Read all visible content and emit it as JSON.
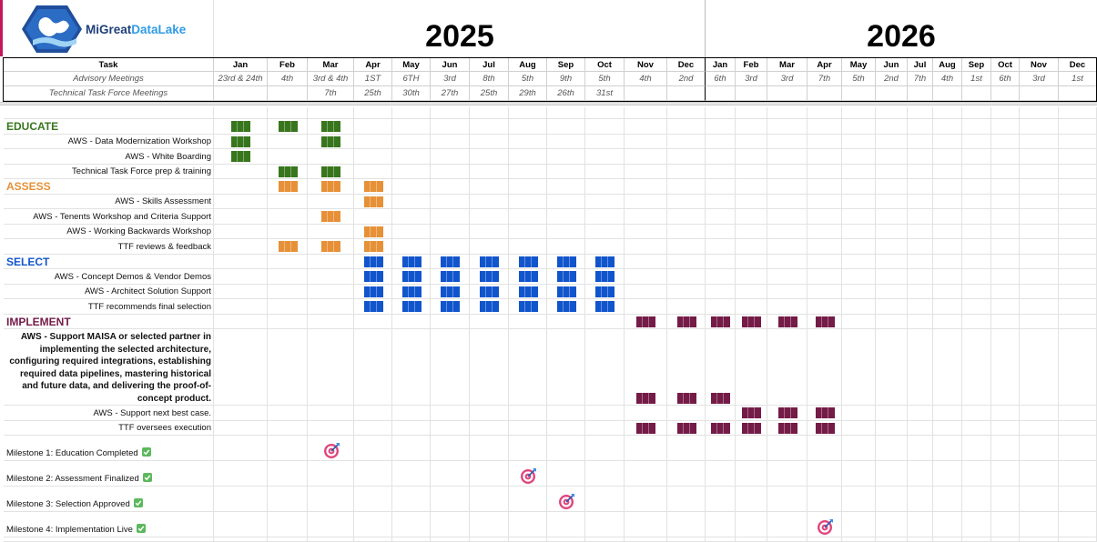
{
  "logo": {
    "brand_a": "MiGreat",
    "brand_b": "DataLake"
  },
  "years": [
    "2025",
    "2026"
  ],
  "header": {
    "task": "Task",
    "advisory": "Advisory Meetings",
    "ttf": "Technical Task Force Meetings"
  },
  "months": [
    "Jan",
    "Feb",
    "Mar",
    "Apr",
    "May",
    "Jun",
    "Jul",
    "Aug",
    "Sep",
    "Oct",
    "Nov",
    "Dec",
    "Jan",
    "Feb",
    "Mar",
    "Apr",
    "May",
    "Jun",
    "Jul",
    "Aug",
    "Sep",
    "Oct",
    "Nov",
    "Dec"
  ],
  "advisory_dates": [
    "23rd & 24th",
    "4th",
    "3rd & 4th",
    "1ST",
    "6TH",
    "3rd",
    "8th",
    "5th",
    "9th",
    "5th",
    "4th",
    "2nd",
    "6th",
    "3rd",
    "3rd",
    "7th",
    "5th",
    "2nd",
    "7th",
    "4th",
    "1st",
    "6th",
    "3rd",
    "1st"
  ],
  "ttf_dates": [
    null,
    null,
    "7th",
    "25th",
    "30th",
    "27th",
    "25th",
    "29th",
    "26th",
    "31st",
    null,
    null,
    null,
    null,
    null,
    null,
    null,
    null,
    null,
    null,
    null,
    null,
    null,
    null
  ],
  "sections": [
    {
      "title": "EDUCATE",
      "color": "#38761d",
      "months": [
        0,
        1,
        2
      ],
      "rows": [
        {
          "label": "AWS - Data Modernization Workshop",
          "months": [
            0,
            2
          ]
        },
        {
          "label": "AWS - White Boarding",
          "months": [
            0
          ]
        },
        {
          "label": "Technical Task Force prep & training",
          "months": [
            1,
            2
          ]
        }
      ]
    },
    {
      "title": "ASSESS",
      "color": "#e69138",
      "months": [
        1,
        2,
        3
      ],
      "rows": [
        {
          "label": "AWS - Skills Assessment",
          "months": [
            3
          ]
        },
        {
          "label": "AWS - Tenents Workshop and Criteria Support",
          "months": [
            2
          ]
        },
        {
          "label": "AWS - Working Backwards Workshop",
          "months": [
            3
          ]
        },
        {
          "label": "TTF reviews & feedback",
          "months": [
            1,
            2,
            3
          ]
        }
      ]
    },
    {
      "title": "SELECT",
      "color": "#1155cc",
      "months": [
        3,
        4,
        5,
        6,
        7,
        8,
        9
      ],
      "rows": [
        {
          "label": "AWS - Concept Demos & Vendor Demos",
          "months": [
            3,
            4,
            5,
            6,
            7,
            8,
            9
          ]
        },
        {
          "label": "AWS - Architect Solution Support",
          "months": [
            3,
            4,
            5,
            6,
            7,
            8,
            9
          ]
        },
        {
          "label": "TTF recommends final selection",
          "months": [
            3,
            4,
            5,
            6,
            7,
            8,
            9
          ]
        }
      ]
    },
    {
      "title": "IMPLEMENT",
      "color": "#741b47",
      "months": [
        10,
        11,
        12,
        13,
        14,
        15
      ],
      "rows": [
        {
          "label": "AWS - Support MAISA or selected partner in implementing the selected architecture, configuring required integrations, establishing required data pipelines, mastering historical and future data, and delivering the proof-of-concept product.",
          "months": [
            10,
            11,
            12
          ]
        },
        {
          "label": "AWS - Support next best case.",
          "months": [
            13,
            14,
            15
          ]
        },
        {
          "label": "TTF oversees execution",
          "months": [
            10,
            11,
            12,
            13,
            14,
            15
          ]
        }
      ]
    }
  ],
  "milestones": [
    {
      "label": "Milestone 1: Education Completed",
      "month": 2
    },
    {
      "label": "Milestone 2: Assessment Finalized",
      "month": 7
    },
    {
      "label": "Milestone 3: Selection Approved",
      "month": 8
    },
    {
      "label": "Milestone 4: Implementation Live",
      "month": 15
    }
  ]
}
